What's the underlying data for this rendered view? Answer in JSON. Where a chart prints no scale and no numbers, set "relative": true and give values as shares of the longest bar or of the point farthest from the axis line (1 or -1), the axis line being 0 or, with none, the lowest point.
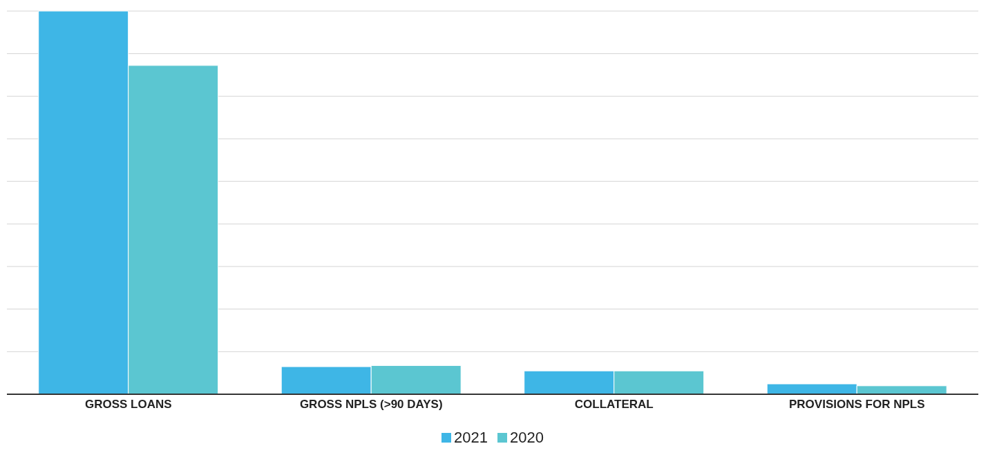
{
  "chart_data": {
    "type": "bar",
    "relative": true,
    "categories": [
      "GROSS LOANS",
      "GROSS NPLS (>90 DAYS)",
      "COLLATERAL",
      "PROVISIONS FOR NPLS"
    ],
    "series": [
      {
        "name": "2021",
        "color": "#3eb6e6",
        "values": [
          1,
          0.072,
          0.061,
          0.027
        ]
      },
      {
        "name": "2020",
        "color": "#5bc6d1",
        "values": [
          0.858,
          0.075,
          0.061,
          0.022
        ]
      }
    ],
    "grid": "y",
    "legend": "bottom"
  }
}
